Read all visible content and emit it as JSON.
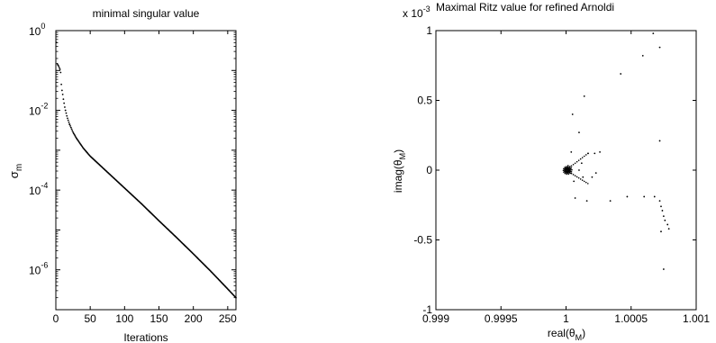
{
  "chart_data": [
    {
      "type": "scatter",
      "title": "minimal singular value",
      "xlabel": "Iterations",
      "ylabel": "σ",
      "ylabel_subscript": "m",
      "xscale": "linear",
      "yscale": "log",
      "xlim": [
        0,
        262
      ],
      "ylim_exponents": [
        -7,
        0
      ],
      "xticks": [
        0,
        50,
        100,
        150,
        200,
        250
      ],
      "yticks": [
        {
          "base": "10",
          "exp": "0",
          "e": 0
        },
        {
          "base": "10",
          "exp": "-2",
          "e": -2
        },
        {
          "base": "10",
          "exp": "-4",
          "e": -4
        },
        {
          "base": "10",
          "exp": "-6",
          "e": -6
        }
      ],
      "series": [
        {
          "values_log10_early": [
            [
              1,
              -0.3
            ],
            [
              2,
              -0.83
            ],
            [
              3,
              -0.86
            ],
            [
              4,
              -0.89
            ],
            [
              5,
              -0.93
            ],
            [
              6,
              -0.97
            ],
            [
              7,
              -1.05
            ],
            [
              8,
              -1.35
            ],
            [
              9,
              -1.5
            ],
            [
              10,
              -1.6
            ],
            [
              11,
              -1.72
            ],
            [
              12,
              -1.82
            ],
            [
              13,
              -1.92
            ],
            [
              14,
              -2.0
            ],
            [
              15,
              -2.07
            ],
            [
              16,
              -2.14
            ],
            [
              17,
              -2.2
            ],
            [
              18,
              -2.25
            ],
            [
              19,
              -2.3
            ],
            [
              20,
              -2.35
            ]
          ],
          "values_log10_tail": [
            [
              20,
              -2.35
            ],
            [
              25,
              -2.55
            ],
            [
              30,
              -2.7
            ],
            [
              40,
              -2.95
            ],
            [
              50,
              -3.15
            ],
            [
              75,
              -3.55
            ],
            [
              100,
              -3.95
            ],
            [
              125,
              -4.35
            ],
            [
              150,
              -4.77
            ],
            [
              175,
              -5.18
            ],
            [
              200,
              -5.6
            ],
            [
              225,
              -6.03
            ],
            [
              250,
              -6.48
            ],
            [
              262,
              -6.7
            ]
          ]
        }
      ],
      "grid": false
    },
    {
      "type": "scatter",
      "title": "Maximal Ritz value for refined Arnoldi",
      "multiplier": {
        "base": "x 10",
        "exp": "-3"
      },
      "xlabel": "real(θ",
      "xlabel_subscript": "M",
      "xlabel_end": ")",
      "ylabel": "imag(θ",
      "ylabel_subscript": "M",
      "ylabel_end": ")",
      "xlim": [
        0.999,
        1.001
      ],
      "ylim": [
        -1,
        1
      ],
      "xticks": [
        "0.999",
        "0.9995",
        "1",
        "1.0005",
        "1.001"
      ],
      "xtick_values": [
        0.999,
        0.9995,
        1,
        1.0005,
        1.001
      ],
      "yticks": [
        "1",
        "0.5",
        "0",
        "-0.5",
        "-1"
      ],
      "ytick_values": [
        1,
        0.5,
        0,
        -0.5,
        -1
      ],
      "points_1e3": [
        [
          0.1,
          0.0
        ],
        [
          0.04,
          0.13
        ],
        [
          0.06,
          -0.08
        ],
        [
          0.05,
          0.4
        ],
        [
          0.07,
          -0.2
        ],
        [
          0.14,
          0.53
        ],
        [
          0.1,
          0.27
        ],
        [
          0.17,
          0.12
        ],
        [
          0.22,
          0.12
        ],
        [
          0.26,
          0.13
        ],
        [
          0.2,
          -0.05
        ],
        [
          0.23,
          -0.02
        ],
        [
          0.12,
          0.05
        ],
        [
          0.13,
          -0.05
        ],
        [
          0.16,
          -0.22
        ],
        [
          0.34,
          -0.22
        ],
        [
          0.47,
          -0.19
        ],
        [
          0.6,
          -0.19
        ],
        [
          0.68,
          -0.19
        ],
        [
          0.72,
          -0.22
        ],
        [
          0.73,
          -0.26
        ],
        [
          0.74,
          -0.29
        ],
        [
          0.75,
          -0.33
        ],
        [
          0.76,
          -0.36
        ],
        [
          0.78,
          -0.39
        ],
        [
          0.79,
          -0.42
        ],
        [
          0.73,
          -0.44
        ],
        [
          0.75,
          -0.71
        ],
        [
          0.42,
          0.69
        ],
        [
          0.59,
          0.82
        ],
        [
          0.67,
          0.98
        ],
        [
          0.72,
          0.88
        ],
        [
          0.72,
          0.21
        ]
      ],
      "grid": false
    }
  ]
}
